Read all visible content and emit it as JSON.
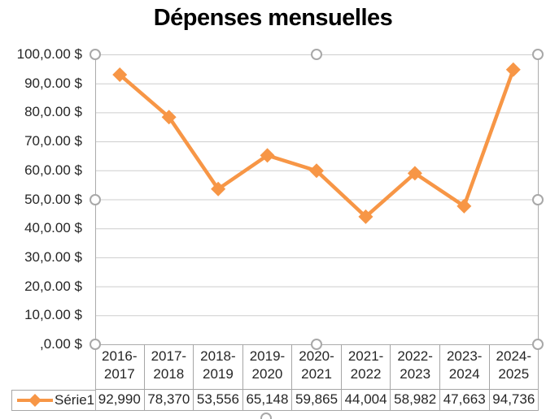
{
  "chart_data": {
    "type": "line",
    "title": "Dépenses mensuelles",
    "categories": [
      "2016-2017",
      "2017-2018",
      "2018-2019",
      "2019-2020",
      "2020-2021",
      "2021-2022",
      "2022-2023",
      "2023-2024",
      "2024-2025"
    ],
    "series": [
      {
        "name": "Série1",
        "values": [
          92.99,
          78.37,
          53.556,
          65.148,
          59.865,
          44.004,
          58.982,
          47.663,
          94.736
        ],
        "display_values": [
          "92,990",
          "78,370",
          "53,556",
          "65,148",
          "59,865",
          "44,004",
          "58,982",
          "47,663",
          "94,736"
        ]
      }
    ],
    "y_tick_labels": [
      "100,0.00 $",
      "90,0.00 $",
      "80,0.00 $",
      "70,0.00 $",
      "60,0.00 $",
      "50,0.00 $",
      "40,0.00 $",
      "30,0.00 $",
      "20,0.00 $",
      "10,0.00 $",
      ",0.00 $"
    ],
    "ylim": [
      0,
      100
    ],
    "xlabel": "",
    "ylabel": "",
    "grid": "horizontal-major",
    "legend_position": "data-table-left",
    "marker": "diamond",
    "has_data_table": true
  },
  "selection": {
    "state": "plot-area-selected",
    "handle_shape": "circle"
  },
  "colors": {
    "series_line": "#F79646",
    "gridline": "#CDCDCD",
    "axis_line": "#ABABAB",
    "table_border": "#A6A6A6",
    "handle_stroke": "#A8A8A8",
    "handle_fill": "#FFFFFF",
    "title_text": "#000000",
    "label_text": "#262626",
    "background": "#FFFFFF"
  }
}
